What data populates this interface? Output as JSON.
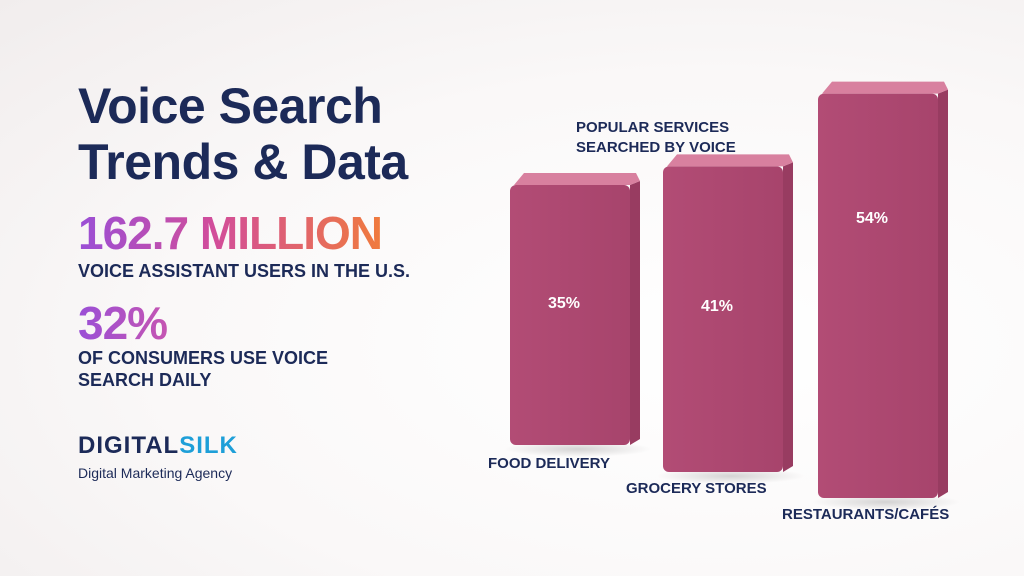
{
  "title": {
    "line1": "Voice Search",
    "line2": "Trends & Data"
  },
  "stats": [
    {
      "value": "162.7 MILLION",
      "label": "VOICE ASSISTANT USERS IN THE U.S."
    },
    {
      "value": "32%",
      "label_line1": "OF CONSUMERS USE VOICE",
      "label_line2": "SEARCH DAILY"
    }
  ],
  "logo": {
    "word_part1": "DIGITAL",
    "word_part2": "SILK",
    "tagline": "Digital Marketing Agency"
  },
  "colors": {
    "heading": "#1c2a58",
    "bar_front": "#b24c75",
    "bar_side": "#983c61",
    "bar_top": "#d8809f",
    "logo_accent": "#1e9fd8"
  },
  "chart_data": {
    "type": "bar",
    "title_line1": "POPULAR SERVICES",
    "title_line2": "SEARCHED BY VOICE",
    "categories": [
      "FOOD DELIVERY",
      "GROCERY STORES",
      "RESTAURANTS/CAFÉS"
    ],
    "values": [
      35,
      41,
      54
    ],
    "value_labels": [
      "35%",
      "41%",
      "54%"
    ],
    "unit": "%",
    "grid": false,
    "legend": "none"
  }
}
